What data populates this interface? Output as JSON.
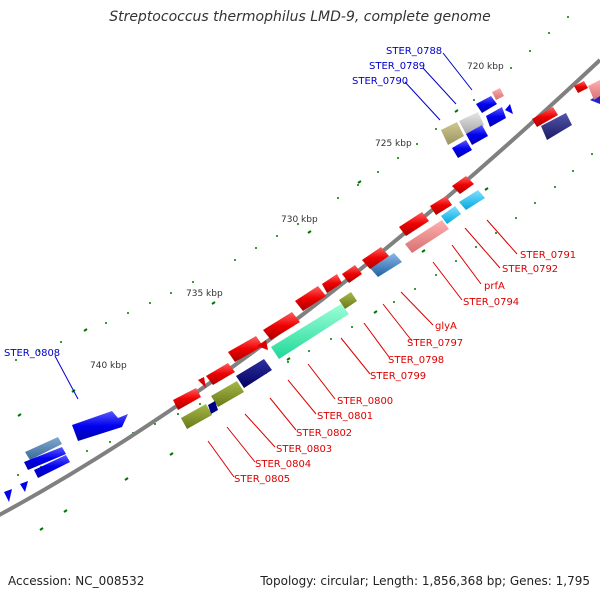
{
  "title": "Streptococcus thermophilus LMD-9, complete genome",
  "accession": "Accession: NC_008532",
  "summary": "Topology: circular; Length: 1,856,368 bp; Genes: 1,795",
  "scale_labels": [
    "720 kbp",
    "725 kbp",
    "730 kbp",
    "735 kbp",
    "740 kbp"
  ],
  "blue_labels": [
    "STER_0788",
    "STER_0789",
    "STER_0790",
    "STER_0808"
  ],
  "red_labels": [
    "STER_0791",
    "STER_0792",
    "prfA",
    "STER_0794",
    "glyA",
    "STER_0797",
    "STER_0798",
    "STER_0799",
    "STER_0800",
    "STER_0801",
    "STER_0802",
    "STER_0803",
    "STER_0804",
    "STER_0805"
  ],
  "colors": {
    "backbone": "#808080",
    "forward_strand_label": "#0000cc",
    "reverse_strand_label": "#dd0000",
    "tick": "#007700"
  }
}
